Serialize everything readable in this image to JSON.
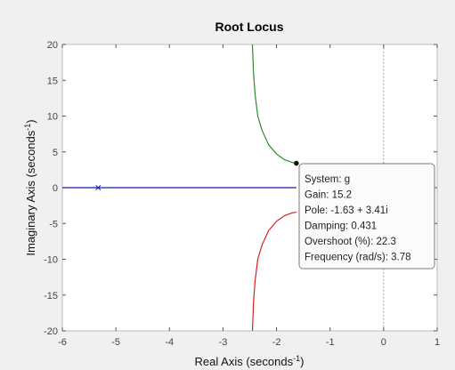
{
  "chart_data": {
    "type": "line",
    "title": "Root Locus",
    "xlabel": {
      "text": "Real Axis (seconds",
      "sup": "-1",
      "close": ")"
    },
    "ylabel": {
      "text": "Imaginary Axis (seconds",
      "sup": "-1",
      "close": ")"
    },
    "xlim": [
      -6,
      1
    ],
    "ylim": [
      -20,
      20
    ],
    "xticks": [
      -6,
      -5,
      -4,
      -3,
      -2,
      -1,
      0,
      1
    ],
    "yticks": [
      -20,
      -15,
      -10,
      -5,
      0,
      5,
      10,
      15,
      20
    ],
    "grid": false,
    "colors": {
      "real_branch": "#1a1aa6",
      "upper_branch": "#2e8b2e",
      "lower_branch": "#d62020",
      "marker": "#1a1aa6",
      "guide": "#808080"
    },
    "series": [
      {
        "x": [
          -6.0,
          -5.33,
          -4.5,
          -3.5,
          -2.5,
          -2.0,
          -1.63
        ],
        "y": [
          0,
          0,
          0,
          0,
          0,
          0,
          0
        ]
      },
      {
        "x": [
          -2.45,
          -2.43,
          -2.4,
          -2.35,
          -2.27,
          -2.15,
          -2.0,
          -1.85,
          -1.7,
          -1.63
        ],
        "y": [
          20.0,
          16.0,
          13.0,
          10.0,
          8.0,
          6.0,
          4.7,
          3.9,
          3.5,
          3.41
        ]
      },
      {
        "x": [
          -1.63,
          -1.7,
          -1.85,
          -2.0,
          -2.15,
          -2.27,
          -2.35,
          -2.4,
          -2.43,
          -2.45
        ],
        "y": [
          -3.41,
          -3.5,
          -3.9,
          -4.7,
          -6.0,
          -8.0,
          -10.0,
          -13.0,
          -16.0,
          -20.0
        ]
      }
    ],
    "open_loop_poles": [
      {
        "x": -5.33,
        "y": 0
      }
    ],
    "selected_point": {
      "x": -1.63,
      "y": 3.41
    },
    "datatip": {
      "lines": [
        "System: g",
        "Gain: 15.2",
        "Pole: -1.63 + 3.41i",
        "Damping: 0.431",
        "Overshoot (%): 22.3",
        "Frequency (rad/s): 3.78"
      ]
    }
  }
}
